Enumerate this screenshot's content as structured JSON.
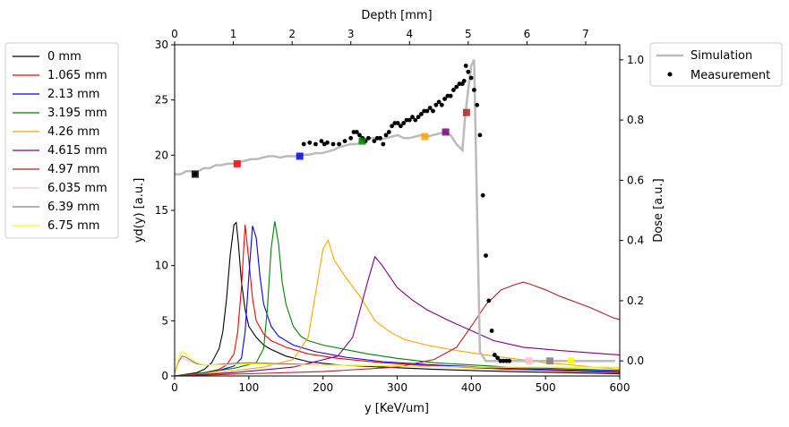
{
  "chart_data": [
    {
      "type": "line",
      "panel": "spectra (bottom x, left y)",
      "xlabel": "y [KeV/um]",
      "ylabel": "yd(y) [a.u.]",
      "xlim": [
        0,
        600
      ],
      "ylim": [
        0,
        30
      ],
      "xticks": [
        "0",
        "100",
        "200",
        "300",
        "400",
        "500",
        "600"
      ],
      "yticks": [
        "0",
        "5",
        "10",
        "15",
        "20",
        "25",
        "30"
      ],
      "legend_position": "outside-left",
      "series": [
        {
          "name": "0 mm",
          "color": "#000000",
          "x": [
            0,
            10,
            20,
            30,
            40,
            50,
            60,
            65,
            70,
            75,
            80,
            83,
            86,
            90,
            95,
            100,
            110,
            120,
            130,
            150,
            180,
            220,
            280,
            350,
            450,
            600
          ],
          "y": [
            0,
            0.1,
            0.2,
            0.3,
            0.6,
            1.2,
            2.5,
            4,
            7,
            11,
            13.7,
            13.9,
            12,
            8.5,
            6,
            4.5,
            3.5,
            2.8,
            2.4,
            1.8,
            1.3,
            1,
            0.8,
            0.6,
            0.4,
            0.2
          ]
        },
        {
          "name": "1.065 mm",
          "color": "#ff0000",
          "x": [
            0,
            20,
            40,
            60,
            70,
            80,
            85,
            90,
            95,
            100,
            105,
            110,
            120,
            130,
            150,
            180,
            220,
            280,
            350,
            450,
            600
          ],
          "y": [
            0,
            0.1,
            0.3,
            0.6,
            1,
            2,
            4,
            8,
            13.7,
            10.5,
            7,
            5,
            3.8,
            3.2,
            2.6,
            2,
            1.6,
            1.2,
            0.9,
            0.6,
            0.3
          ]
        },
        {
          "name": "2.13 mm",
          "color": "#0000ff",
          "x": [
            0,
            30,
            60,
            80,
            90,
            95,
            100,
            105,
            110,
            115,
            120,
            130,
            140,
            160,
            190,
            230,
            280,
            350,
            450,
            600
          ],
          "y": [
            0,
            0.2,
            0.5,
            0.9,
            1.6,
            4,
            9,
            13.6,
            12.5,
            9,
            6.5,
            4.5,
            3.6,
            2.8,
            2.2,
            1.7,
            1.3,
            1,
            0.7,
            0.4
          ]
        },
        {
          "name": "3.195 mm",
          "color": "#008000",
          "x": [
            0,
            40,
            80,
            110,
            120,
            125,
            130,
            135,
            140,
            145,
            150,
            160,
            170,
            180,
            200,
            230,
            260,
            300,
            350,
            450,
            600
          ],
          "y": [
            0,
            0.3,
            0.7,
            1.2,
            2.5,
            6,
            11.5,
            14,
            12,
            8.5,
            6.5,
            4.5,
            3.6,
            3.2,
            2.8,
            2.4,
            2,
            1.6,
            1.2,
            0.8,
            0.5
          ]
        },
        {
          "name": "4.26 mm",
          "color": "#ffa500",
          "x": [
            0,
            60,
            120,
            160,
            180,
            190,
            200,
            207,
            215,
            230,
            250,
            270,
            290,
            310,
            340,
            380,
            430,
            500,
            600
          ],
          "y": [
            0,
            0.3,
            0.8,
            1.5,
            3.5,
            7.5,
            11.5,
            12.3,
            10.5,
            9,
            7.2,
            5,
            4,
            3.3,
            2.8,
            2.3,
            1.8,
            1.2,
            0.6
          ]
        },
        {
          "name": "4.615 mm",
          "color": "#800080",
          "x": [
            0,
            80,
            160,
            220,
            240,
            250,
            260,
            270,
            280,
            300,
            320,
            340,
            370,
            400,
            430,
            470,
            520,
            600
          ],
          "y": [
            0,
            0.3,
            0.8,
            1.8,
            3.5,
            6,
            8.5,
            10.8,
            10,
            8,
            6.9,
            6,
            5,
            4.1,
            3.2,
            2.6,
            2.3,
            1.9
          ]
        },
        {
          "name": "4.97 mm",
          "color": "#b22222",
          "x": [
            0,
            100,
            200,
            300,
            350,
            380,
            400,
            420,
            440,
            460,
            470,
            480,
            500,
            520,
            560,
            590,
            600
          ],
          "y": [
            0,
            0.2,
            0.4,
            0.8,
            1.5,
            2.6,
            4.5,
            6.5,
            7.8,
            8.3,
            8.5,
            8.3,
            7.8,
            7.2,
            6.2,
            5.3,
            5.1
          ]
        },
        {
          "name": "6.035 mm",
          "color": "#ffc0cb",
          "x": [
            0,
            5,
            10,
            15,
            20,
            25,
            30,
            40,
            50,
            70,
            100,
            150,
            200,
            300,
            400,
            500,
            600
          ],
          "y": [
            0.3,
            1.2,
            1.6,
            1.5,
            1.3,
            1.2,
            1.1,
            1,
            1,
            1.1,
            1.2,
            1.1,
            1,
            0.9,
            0.8,
            0.8,
            0.8
          ]
        },
        {
          "name": "6.39 mm",
          "color": "#808080",
          "x": [
            0,
            5,
            10,
            15,
            20,
            25,
            30,
            40,
            50,
            70,
            100,
            150,
            200,
            300,
            400,
            500,
            600
          ],
          "y": [
            0.3,
            1.3,
            1.8,
            1.7,
            1.5,
            1.3,
            1.1,
            1,
            1,
            1.1,
            1.2,
            1.1,
            1,
            0.9,
            0.8,
            0.8,
            0.8
          ]
        },
        {
          "name": "6.75 mm",
          "color": "#ffff00",
          "x": [
            0,
            5,
            10,
            15,
            20,
            25,
            30,
            40,
            50,
            70,
            100,
            150,
            200,
            300,
            400,
            500,
            600
          ],
          "y": [
            0.4,
            1.5,
            2.2,
            2,
            1.7,
            1.4,
            1.2,
            1,
            1,
            1,
            1.1,
            1,
            1,
            0.9,
            0.8,
            0.8,
            0.8
          ]
        }
      ]
    },
    {
      "type": "line",
      "panel": "depth-dose (top x, right y)",
      "xlabel": "Depth [mm]",
      "ylabel": "Dose [a.u.]",
      "xlim": [
        0,
        7.58
      ],
      "ylim": [
        -0.05,
        1.05
      ],
      "xticks": [
        "0",
        "1",
        "2",
        "3",
        "4",
        "5",
        "6",
        "7"
      ],
      "yticks": [
        "0.0",
        "0.2",
        "0.4",
        "0.6",
        "0.8",
        "1.0"
      ],
      "legend_position": "outside-top-right",
      "simulation": {
        "name": "Simulation",
        "color": "#bbbbbb",
        "x": [
          0,
          0.1,
          0.2,
          0.3,
          0.4,
          0.5,
          0.6,
          0.7,
          0.8,
          0.9,
          1.0,
          1.1,
          1.2,
          1.3,
          1.4,
          1.5,
          1.6,
          1.7,
          1.8,
          1.9,
          2.0,
          2.1,
          2.2,
          2.3,
          2.4,
          2.5,
          2.6,
          2.7,
          2.8,
          2.9,
          3.0,
          3.1,
          3.2,
          3.3,
          3.4,
          3.5,
          3.6,
          3.7,
          3.8,
          3.9,
          4.0,
          4.1,
          4.2,
          4.3,
          4.4,
          4.5,
          4.6,
          4.7,
          4.8,
          4.9,
          4.95,
          5.0,
          5.05,
          5.1,
          5.15,
          5.2,
          5.3,
          5.5,
          6.0,
          6.5,
          7.0,
          7.5
        ],
        "y": [
          0.62,
          0.62,
          0.63,
          0.63,
          0.63,
          0.64,
          0.64,
          0.65,
          0.65,
          0.655,
          0.655,
          0.66,
          0.665,
          0.67,
          0.67,
          0.675,
          0.68,
          0.68,
          0.675,
          0.68,
          0.68,
          0.68,
          0.685,
          0.685,
          0.69,
          0.69,
          0.695,
          0.7,
          0.71,
          0.715,
          0.72,
          0.72,
          0.73,
          0.74,
          0.74,
          0.735,
          0.74,
          0.745,
          0.75,
          0.74,
          0.74,
          0.745,
          0.75,
          0.745,
          0.75,
          0.755,
          0.76,
          0.75,
          0.72,
          0.7,
          0.82,
          0.9,
          0.98,
          1.0,
          0.5,
          0.03,
          0.0,
          0.0,
          0.0,
          0.0,
          0.0,
          0.0
        ]
      },
      "measurement": {
        "name": "Measurement",
        "color": "#000000",
        "x": [
          0.35,
          2.2,
          2.3,
          2.4,
          2.5,
          2.55,
          2.6,
          2.7,
          2.8,
          2.9,
          3.0,
          3.05,
          3.1,
          3.15,
          3.2,
          3.25,
          3.3,
          3.4,
          3.45,
          3.5,
          3.55,
          3.6,
          3.65,
          3.7,
          3.75,
          3.8,
          3.85,
          3.9,
          3.95,
          4.0,
          4.05,
          4.1,
          4.15,
          4.2,
          4.25,
          4.3,
          4.35,
          4.4,
          4.45,
          4.5,
          4.55,
          4.6,
          4.65,
          4.7,
          4.75,
          4.8,
          4.85,
          4.9,
          4.93,
          4.96,
          5.0,
          5.05,
          5.1,
          5.15,
          5.2,
          5.25,
          5.3,
          5.35,
          5.4,
          5.45,
          5.5,
          5.55,
          5.6,
          5.65,
          5.7
        ],
        "y": [
          0.62,
          0.72,
          0.725,
          0.72,
          0.73,
          0.72,
          0.725,
          0.72,
          0.72,
          0.73,
          0.74,
          0.76,
          0.76,
          0.75,
          0.74,
          0.73,
          0.74,
          0.73,
          0.74,
          0.74,
          0.72,
          0.75,
          0.76,
          0.78,
          0.79,
          0.79,
          0.78,
          0.79,
          0.8,
          0.8,
          0.81,
          0.8,
          0.81,
          0.82,
          0.83,
          0.83,
          0.84,
          0.83,
          0.85,
          0.86,
          0.85,
          0.87,
          0.88,
          0.88,
          0.9,
          0.91,
          0.92,
          0.92,
          0.93,
          0.98,
          0.96,
          0.94,
          0.9,
          0.85,
          0.75,
          0.55,
          0.35,
          0.2,
          0.1,
          0.02,
          0.01,
          0.0,
          0.0,
          0.0,
          0.0
        ]
      },
      "depth_markers": [
        {
          "depth": 0.35,
          "dose": 0.62,
          "color": "#000000"
        },
        {
          "depth": 1.065,
          "dose": 0.655,
          "color": "#ff0000"
        },
        {
          "depth": 2.13,
          "dose": 0.68,
          "color": "#0000ff"
        },
        {
          "depth": 3.195,
          "dose": 0.73,
          "color": "#008000"
        },
        {
          "depth": 4.26,
          "dose": 0.745,
          "color": "#ffa500"
        },
        {
          "depth": 4.615,
          "dose": 0.76,
          "color": "#800080"
        },
        {
          "depth": 4.97,
          "dose": 0.825,
          "color": "#b22222"
        },
        {
          "depth": 6.035,
          "dose": 0.0,
          "color": "#ffc0cb"
        },
        {
          "depth": 6.39,
          "dose": 0.0,
          "color": "#808080"
        },
        {
          "depth": 6.75,
          "dose": 0.0,
          "color": "#ffff00"
        }
      ]
    }
  ]
}
